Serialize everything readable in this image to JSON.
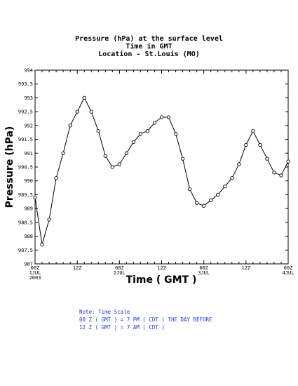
{
  "chart_data": {
    "type": "line",
    "title": [
      "Pressure (hPa) at the surface level",
      "Time in GMT",
      "Location - St.Louis (MO)"
    ],
    "xlabel": "Time ( GMT )",
    "ylabel": "Pressure (hPa)",
    "ylim": [
      987,
      994
    ],
    "yticks": [
      "987",
      "987.5",
      "988",
      "988.5",
      "989",
      "989.5",
      "990",
      "990.5",
      "991",
      "991.5",
      "992",
      "992.5",
      "993",
      "993.5",
      "994"
    ],
    "x_range_hours": [
      0,
      72
    ],
    "xticks": [
      {
        "hour": 0,
        "label": "00Z",
        "sub1": "1JUL",
        "sub2": "2003"
      },
      {
        "hour": 12,
        "label": "12Z",
        "sub1": "",
        "sub2": ""
      },
      {
        "hour": 24,
        "label": "00Z",
        "sub1": "2JUL",
        "sub2": ""
      },
      {
        "hour": 36,
        "label": "12Z",
        "sub1": "",
        "sub2": ""
      },
      {
        "hour": 48,
        "label": "00Z",
        "sub1": "3JUL",
        "sub2": ""
      },
      {
        "hour": 60,
        "label": "12Z",
        "sub1": "",
        "sub2": ""
      },
      {
        "hour": 72,
        "label": "00Z",
        "sub1": "4JUL",
        "sub2": ""
      }
    ],
    "series": [
      {
        "x": [
          0,
          2,
          4,
          6,
          8,
          10,
          12,
          14,
          16,
          18,
          20,
          22,
          24,
          26,
          28,
          30,
          32,
          34,
          36,
          38,
          40,
          42,
          44,
          46,
          48,
          50,
          52,
          54,
          56,
          58,
          60,
          62,
          64,
          66,
          68,
          70,
          72
        ],
        "values": [
          989.4,
          987.7,
          988.6,
          990.1,
          991.0,
          992.0,
          992.5,
          993.0,
          992.5,
          991.8,
          990.9,
          990.5,
          990.6,
          991.0,
          991.4,
          991.7,
          991.8,
          992.1,
          992.3,
          992.3,
          991.7,
          990.8,
          989.7,
          989.2,
          989.1,
          989.3,
          989.5,
          989.8,
          990.1,
          990.6,
          991.3,
          991.8,
          991.3,
          990.8,
          990.3,
          990.2,
          990.7
        ]
      }
    ]
  },
  "note": {
    "line1": "Note: Time Scale",
    "line2": "00 Z ( GMT ) = 7 PM ( CDT ) THE DAY BEFORE",
    "line3": "12 Z ( GMT ) = 7 AM ( CDT )"
  },
  "colors": {
    "line": "#000000",
    "note": "#1f3fd0"
  }
}
